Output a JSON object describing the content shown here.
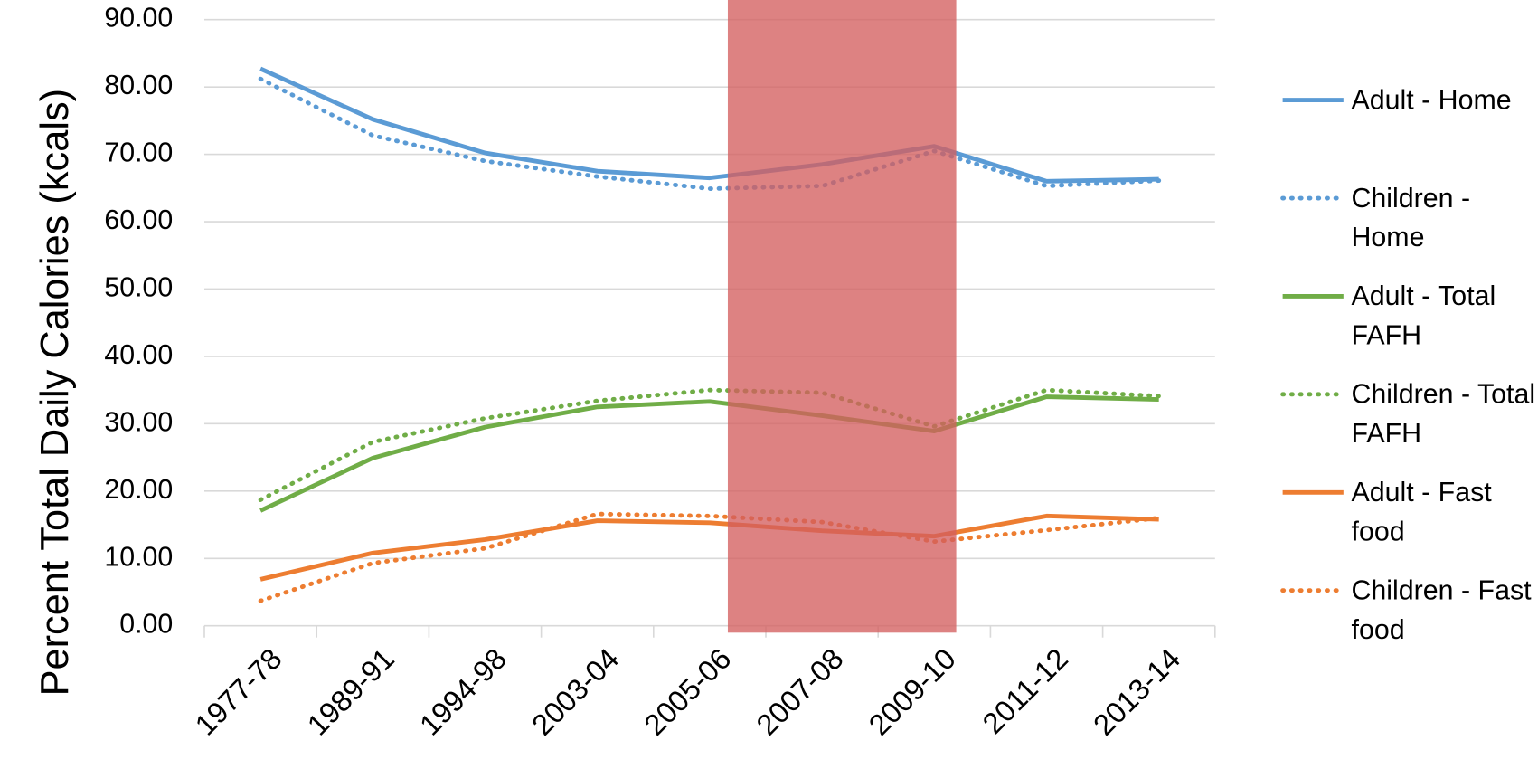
{
  "chart_data": {
    "type": "line",
    "y_label": "Percent Total Daily Calories (kcals)",
    "categories": [
      "1977-78",
      "1989-91",
      "1994-98",
      "2003-04",
      "2005-06",
      "2007-08",
      "2009-10",
      "2011-12",
      "2013-14"
    ],
    "ylim": [
      0,
      90
    ],
    "yticks": [
      {
        "value": 0,
        "label": "0.00"
      },
      {
        "value": 10,
        "label": "10.00"
      },
      {
        "value": 20,
        "label": "20.00"
      },
      {
        "value": 30,
        "label": "30.00"
      },
      {
        "value": 40,
        "label": "40.00"
      },
      {
        "value": 50,
        "label": "50.00"
      },
      {
        "value": 60,
        "label": "60.00"
      },
      {
        "value": 70,
        "label": "70.00"
      },
      {
        "value": 80,
        "label": "80.00"
      },
      {
        "value": 90,
        "label": "90.00"
      }
    ],
    "grid": true,
    "legend": "right",
    "series": [
      {
        "name": "Adult - Home",
        "color": "#5b9bd5",
        "style": "solid",
        "values": [
          82.7,
          75.2,
          70.2,
          67.5,
          66.5,
          68.5,
          71.2,
          66.0,
          66.3
        ]
      },
      {
        "name": "Children - Home",
        "color": "#5b9bd5",
        "style": "dotted",
        "values": [
          81.2,
          72.8,
          69.0,
          66.7,
          64.9,
          65.3,
          70.5,
          65.3,
          66.1
        ]
      },
      {
        "name": "Adult - Total FAFH",
        "color": "#70ad47",
        "style": "solid",
        "values": [
          17.1,
          24.9,
          29.5,
          32.5,
          33.3,
          31.2,
          28.9,
          34.0,
          33.6
        ]
      },
      {
        "name": "Children - Total FAFH",
        "color": "#70ad47",
        "style": "dotted",
        "values": [
          18.7,
          27.3,
          30.8,
          33.4,
          35.0,
          34.6,
          29.6,
          35.0,
          34.1
        ]
      },
      {
        "name": "Adult - Fast food",
        "color": "#ed7d31",
        "style": "solid",
        "values": [
          6.9,
          10.8,
          12.8,
          15.6,
          15.3,
          14.1,
          13.3,
          16.3,
          15.8
        ]
      },
      {
        "name": "Children - Fast food",
        "color": "#ed7d31",
        "style": "dotted",
        "values": [
          3.7,
          9.3,
          11.5,
          16.6,
          16.3,
          15.4,
          12.5,
          14.2,
          16.0
        ]
      }
    ]
  }
}
